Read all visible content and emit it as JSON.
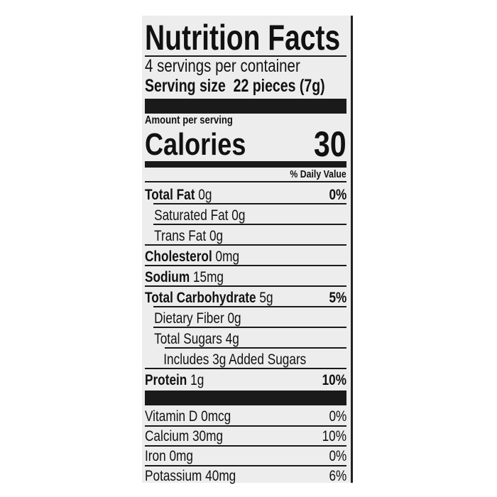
{
  "title": "Nutrition Facts",
  "servings_per_container": "4 servings per container",
  "serving_size_label": "Serving size",
  "serving_size_value": "22 pieces (7g)",
  "amount_per_serving": "Amount per serving",
  "calories_label": "Calories",
  "calories_value": "30",
  "daily_value_header": "% Daily Value",
  "nutrients": [
    {
      "name": "Total Fat",
      "amount": "0g",
      "dv": "0%"
    },
    {
      "name": "Saturated Fat",
      "amount": "0g",
      "dv": ""
    },
    {
      "name": "Trans Fat",
      "amount": "0g",
      "dv": ""
    },
    {
      "name": "Cholesterol",
      "amount": "0mg",
      "dv": ""
    },
    {
      "name": "Sodium",
      "amount": "15mg",
      "dv": ""
    },
    {
      "name": "Total Carbohydrate",
      "amount": "5g",
      "dv": "5%"
    },
    {
      "name": "Dietary Fiber",
      "amount": "0g",
      "dv": ""
    },
    {
      "name": "Total Sugars",
      "amount": "4g",
      "dv": ""
    },
    {
      "name": "Includes 3g Added Sugars",
      "amount": "",
      "dv": ""
    },
    {
      "name": "Protein",
      "amount": "1g",
      "dv": "10%"
    }
  ],
  "vitamins": [
    {
      "name": "Vitamin D 0mcg",
      "dv": "0%"
    },
    {
      "name": "Calcium 30mg",
      "dv": "10%"
    },
    {
      "name": "Iron 0mg",
      "dv": "0%"
    },
    {
      "name": "Potassium 40mg",
      "dv": "6%"
    }
  ]
}
